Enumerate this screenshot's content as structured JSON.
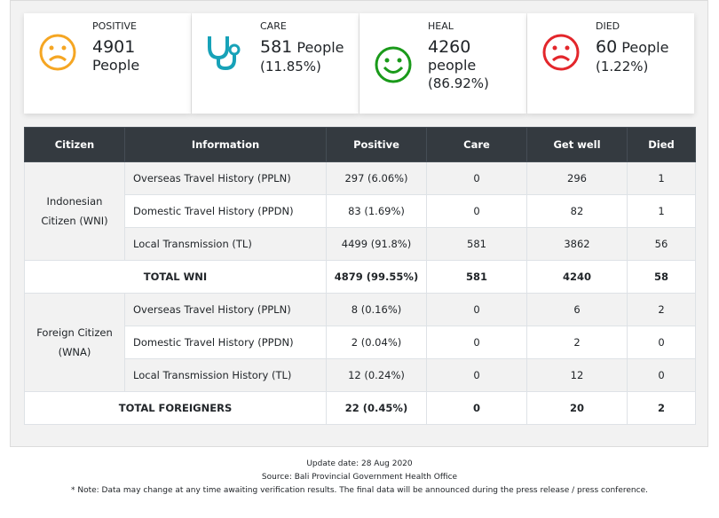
{
  "cards": [
    {
      "label": "POSITIVE",
      "value": "4901",
      "unit": "People"
    },
    {
      "label": "CARE",
      "value": "581",
      "unit": "People",
      "percent": "(11.85%)"
    },
    {
      "label": "HEAL",
      "value": "4260",
      "unit": "people",
      "percent": "(86.92%)"
    },
    {
      "label": "DIED",
      "value": "60",
      "unit": "People",
      "percent": "(1.22%)"
    }
  ],
  "table": {
    "header": [
      "Citizen",
      "Information",
      "Positive",
      "Care",
      "Get well",
      "Died"
    ],
    "groups": [
      {
        "label": "Indonesian Citizen (WNI)",
        "rows": [
          [
            "Overseas Travel History (PPLN)",
            "297 (6.06%)",
            0,
            296,
            1
          ],
          [
            "Domestic Travel History (PPDN)",
            "83 (1.69%)",
            0,
            82,
            1
          ],
          [
            "Local Transmission (TL)",
            "4499 (91.8%)",
            581,
            3862,
            56
          ]
        ],
        "total": [
          "TOTAL WNI",
          "4879 (99.55%)",
          581,
          4240,
          58
        ]
      },
      {
        "label": "Foreign Citizen (WNA)",
        "rows": [
          [
            "Overseas Travel History (PPLN)",
            "8 (0.16%)",
            0,
            6,
            2
          ],
          [
            "Domestic Travel History (PPDN)",
            "2 (0.04%)",
            0,
            2,
            0
          ],
          [
            "Local Transmission History (TL)",
            "12 (0.24%)",
            0,
            12,
            0
          ]
        ],
        "total": [
          "TOTAL FOREIGNERS",
          "22 (0.45%)",
          0,
          20,
          2
        ]
      }
    ]
  },
  "footer": {
    "update": "Update date: 28 Aug 2020",
    "source": "Source: Bali Provincial Government Health Office",
    "note": "* Note: Data may change at any time awaiting verification results. The final data will be announced during the press release / press conference."
  }
}
